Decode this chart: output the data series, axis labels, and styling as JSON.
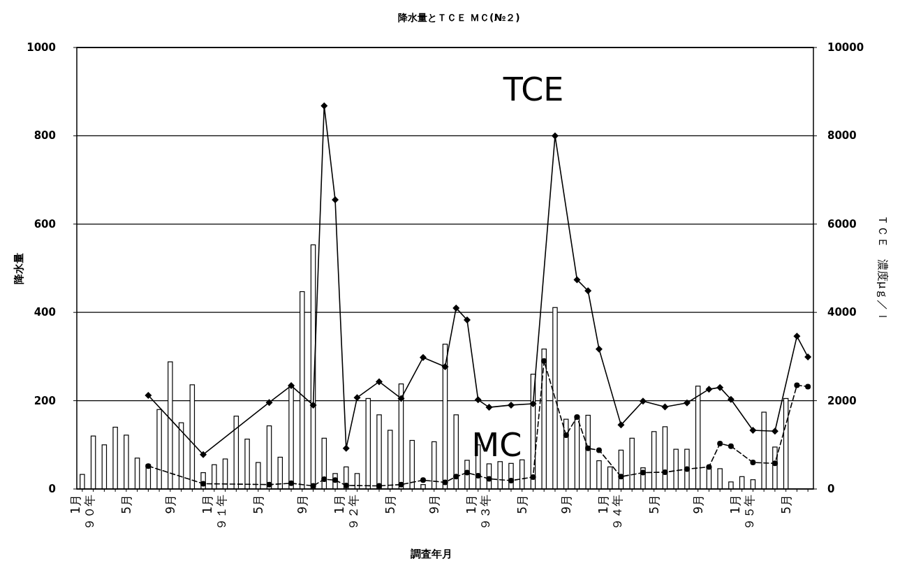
{
  "chart_data": {
    "type": "bar",
    "title": "降水量とＴＣＥ ＭＣ(№２)",
    "xlabel": "調査年月",
    "ylabel": "降水量",
    "y2label": "ＴＣＥ　濃度μｇ／ｌ",
    "categories": [
      "1月９０年",
      null,
      null,
      null,
      "5月",
      null,
      null,
      null,
      "9月",
      null,
      null,
      null,
      "1月９１年",
      null,
      null,
      null,
      "5月",
      null,
      null,
      null,
      "9月",
      null,
      null,
      null,
      "1月９２年",
      null,
      null,
      null,
      "5月",
      null,
      null,
      null,
      "9月",
      null,
      null,
      null,
      "1月９３年",
      null,
      null,
      null,
      "5月",
      null,
      null,
      null,
      "9月",
      null,
      null,
      null,
      "1月９４年",
      null,
      null,
      null,
      "5月",
      null,
      null,
      null,
      "9月",
      null,
      null,
      null,
      "1月９５年",
      null,
      null,
      null,
      "5月",
      null,
      null
    ],
    "series": [
      {
        "color": "#ffffff",
        "values": [
          33,
          120,
          100,
          140,
          122,
          70,
          55,
          180,
          288,
          150,
          236,
          37,
          55,
          68,
          165,
          113,
          60,
          143,
          72,
          235,
          447,
          553,
          115,
          35,
          50,
          35,
          205,
          168,
          133,
          238,
          110,
          10,
          107,
          328,
          168,
          65,
          100,
          57,
          62,
          58,
          66,
          260,
          317,
          411,
          158,
          165,
          167,
          64,
          50,
          88,
          115,
          48,
          130,
          141,
          90,
          90,
          233,
          50,
          46,
          16,
          28,
          21,
          174,
          95,
          205,
          null,
          null
        ]
      },
      {
        "type": "line",
        "name": "TCE",
        "axis": "y2",
        "color": "#000000",
        "marker": "diamond",
        "line_style": "solid",
        "values": [
          null,
          null,
          null,
          null,
          null,
          null,
          2120,
          null,
          null,
          null,
          null,
          780,
          null,
          null,
          null,
          null,
          null,
          1960,
          null,
          2340,
          null,
          1900,
          8680,
          6550,
          920,
          2070,
          null,
          2430,
          null,
          2050,
          null,
          2980,
          null,
          2770,
          4100,
          3830,
          2020,
          1850,
          null,
          1900,
          null,
          1930,
          null,
          8000,
          null,
          4740,
          4490,
          3170,
          null,
          1450,
          null,
          1990,
          null,
          1860,
          null,
          1950,
          null,
          2260,
          2300,
          2030,
          null,
          1330,
          null,
          1310,
          null,
          3460,
          2990
        ]
      },
      {
        "type": "line",
        "name": "MC",
        "axis": "y2",
        "color": "#000000",
        "marker": "circle",
        "line_style": "dashed",
        "values": [
          null,
          null,
          null,
          null,
          null,
          null,
          520,
          null,
          null,
          null,
          null,
          120,
          null,
          null,
          null,
          null,
          null,
          100,
          null,
          130,
          null,
          70,
          220,
          200,
          80,
          null,
          null,
          70,
          null,
          100,
          null,
          200,
          null,
          150,
          280,
          370,
          300,
          230,
          null,
          190,
          null,
          270,
          2900,
          null,
          1220,
          1630,
          920,
          880,
          null,
          280,
          null,
          370,
          null,
          380,
          null,
          450,
          null,
          500,
          1030,
          970,
          null,
          600,
          null,
          580,
          null,
          2350,
          2320
        ]
      }
    ],
    "ylim": [
      0,
      1000
    ],
    "yticks": [
      0,
      200,
      400,
      600,
      800,
      1000
    ],
    "y2lim": [
      0,
      10000
    ],
    "y2ticks": [
      0,
      2000,
      4000,
      6000,
      8000,
      10000
    ],
    "grid": "y",
    "legend": false
  }
}
